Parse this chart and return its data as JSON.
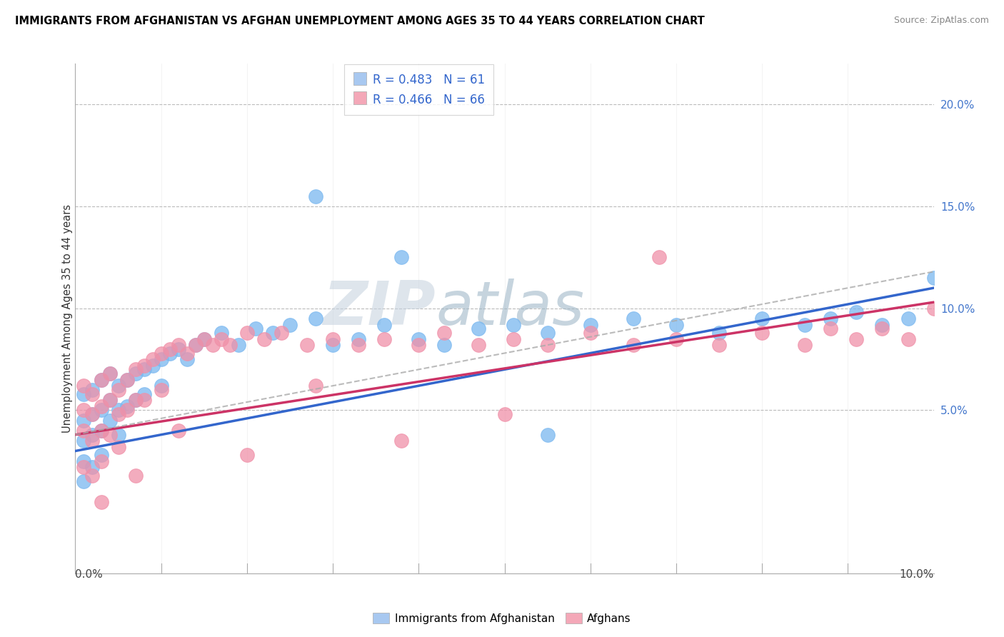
{
  "title": "IMMIGRANTS FROM AFGHANISTAN VS AFGHAN UNEMPLOYMENT AMONG AGES 35 TO 44 YEARS CORRELATION CHART",
  "source": "Source: ZipAtlas.com",
  "ylabel": "Unemployment Among Ages 35 to 44 years",
  "xlim": [
    0.0,
    0.1
  ],
  "ylim": [
    -0.03,
    0.22
  ],
  "legend1_label": "R = 0.483   N = 61",
  "legend2_label": "R = 0.466   N = 66",
  "legend1_color": "#a8c8f0",
  "legend2_color": "#f4a8b8",
  "blue_color": "#7ab8f0",
  "pink_color": "#f090a8",
  "blue_line_color": "#3366cc",
  "pink_line_color": "#cc3366",
  "watermark": "ZIPAtlas",
  "blue_intercept": 0.03,
  "blue_slope": 0.8,
  "pink_intercept": 0.038,
  "pink_slope": 0.65,
  "blue_x": [
    0.001,
    0.001,
    0.001,
    0.001,
    0.001,
    0.002,
    0.002,
    0.002,
    0.002,
    0.003,
    0.003,
    0.003,
    0.003,
    0.004,
    0.004,
    0.004,
    0.005,
    0.005,
    0.005,
    0.006,
    0.006,
    0.007,
    0.007,
    0.008,
    0.008,
    0.009,
    0.01,
    0.01,
    0.011,
    0.012,
    0.013,
    0.014,
    0.015,
    0.017,
    0.019,
    0.021,
    0.023,
    0.025,
    0.028,
    0.03,
    0.033,
    0.036,
    0.04,
    0.043,
    0.047,
    0.051,
    0.055,
    0.06,
    0.065,
    0.07,
    0.075,
    0.08,
    0.085,
    0.088,
    0.091,
    0.094,
    0.097,
    0.1,
    0.028,
    0.038,
    0.055
  ],
  "blue_y": [
    0.058,
    0.045,
    0.035,
    0.025,
    0.015,
    0.06,
    0.048,
    0.038,
    0.022,
    0.065,
    0.05,
    0.04,
    0.028,
    0.068,
    0.055,
    0.045,
    0.062,
    0.05,
    0.038,
    0.065,
    0.052,
    0.068,
    0.055,
    0.07,
    0.058,
    0.072,
    0.075,
    0.062,
    0.078,
    0.08,
    0.075,
    0.082,
    0.085,
    0.088,
    0.082,
    0.09,
    0.088,
    0.092,
    0.095,
    0.082,
    0.085,
    0.092,
    0.085,
    0.082,
    0.09,
    0.092,
    0.088,
    0.092,
    0.095,
    0.092,
    0.088,
    0.095,
    0.092,
    0.095,
    0.098,
    0.092,
    0.095,
    0.115,
    0.155,
    0.125,
    0.038
  ],
  "pink_x": [
    0.001,
    0.001,
    0.001,
    0.001,
    0.002,
    0.002,
    0.002,
    0.002,
    0.003,
    0.003,
    0.003,
    0.003,
    0.004,
    0.004,
    0.004,
    0.005,
    0.005,
    0.005,
    0.006,
    0.006,
    0.007,
    0.007,
    0.008,
    0.008,
    0.009,
    0.01,
    0.01,
    0.011,
    0.012,
    0.013,
    0.014,
    0.015,
    0.016,
    0.017,
    0.018,
    0.02,
    0.022,
    0.024,
    0.027,
    0.03,
    0.033,
    0.036,
    0.04,
    0.043,
    0.047,
    0.051,
    0.055,
    0.06,
    0.065,
    0.07,
    0.075,
    0.08,
    0.085,
    0.088,
    0.091,
    0.094,
    0.097,
    0.1,
    0.003,
    0.007,
    0.012,
    0.02,
    0.028,
    0.038,
    0.05,
    0.068
  ],
  "pink_y": [
    0.062,
    0.05,
    0.04,
    0.022,
    0.058,
    0.048,
    0.035,
    0.018,
    0.065,
    0.052,
    0.04,
    0.025,
    0.068,
    0.055,
    0.038,
    0.06,
    0.048,
    0.032,
    0.065,
    0.05,
    0.07,
    0.055,
    0.072,
    0.055,
    0.075,
    0.078,
    0.06,
    0.08,
    0.082,
    0.078,
    0.082,
    0.085,
    0.082,
    0.085,
    0.082,
    0.088,
    0.085,
    0.088,
    0.082,
    0.085,
    0.082,
    0.085,
    0.082,
    0.088,
    0.082,
    0.085,
    0.082,
    0.088,
    0.082,
    0.085,
    0.082,
    0.088,
    0.082,
    0.09,
    0.085,
    0.09,
    0.085,
    0.1,
    0.005,
    0.018,
    0.04,
    0.028,
    0.062,
    0.035,
    0.048,
    0.125
  ]
}
